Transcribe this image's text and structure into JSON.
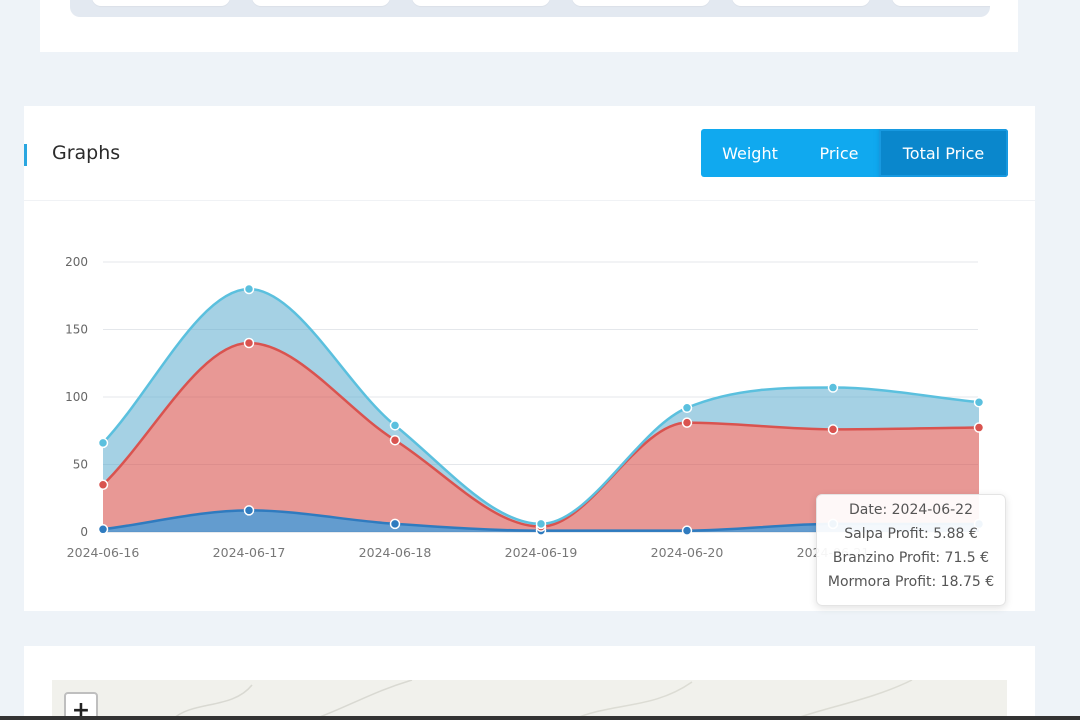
{
  "graphs": {
    "title": "Graphs",
    "tabs": [
      {
        "label": "Weight",
        "active": false
      },
      {
        "label": "Price",
        "active": false
      },
      {
        "label": "Total Price",
        "active": true
      }
    ]
  },
  "colors": {
    "accent": "#2aa6e0",
    "tab_bg": "#10a9ef",
    "tab_active_bg": "#0a87cc",
    "salpa": "#2f7bbf",
    "branzino": "#d9534f",
    "mormora": "#5bc0de"
  },
  "tooltip": {
    "date": "Date: 2024-06-22",
    "line1": "Salpa Profit: 5.88 €",
    "line2": "Branzino Profit: 71.5 €",
    "line3": "Mormora Profit: 18.75 €"
  },
  "chart_data": {
    "type": "area",
    "stacked": true,
    "x": [
      "2024-06-16",
      "2024-06-17",
      "2024-06-18",
      "2024-06-19",
      "2024-06-20",
      "2024-06-21",
      "2024-06-22"
    ],
    "x_tick_labels": [
      "2024-06-16",
      "2024-06-17",
      "2024-06-18",
      "2024-06-19",
      "2024-06-20",
      "2024-06-21"
    ],
    "y_ticks": [
      0,
      50,
      100,
      150,
      200
    ],
    "ylim": [
      0,
      200
    ],
    "series": [
      {
        "name": "Salpa Profit",
        "color": "#2f7bbf",
        "values": [
          2,
          16,
          6,
          1,
          1,
          6,
          5.88
        ]
      },
      {
        "name": "Branzino Profit",
        "color": "#d9534f",
        "values": [
          33,
          124,
          62,
          3,
          80,
          70,
          71.5
        ]
      },
      {
        "name": "Mormora Profit",
        "color": "#5bc0de",
        "values": [
          31,
          40,
          11,
          2,
          11,
          31,
          18.75
        ]
      }
    ],
    "grid": true
  },
  "map": {
    "zoom_in_label": "+"
  }
}
